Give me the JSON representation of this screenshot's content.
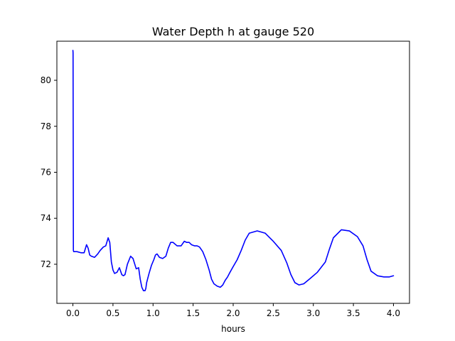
{
  "chart_data": {
    "type": "line",
    "title": "Water Depth h at gauge 520",
    "xlabel": "hours",
    "ylabel": "",
    "xlim": [
      -0.2,
      4.2
    ],
    "ylim": [
      70.3,
      81.7
    ],
    "xticks": [
      0.0,
      0.5,
      1.0,
      1.5,
      2.0,
      2.5,
      3.0,
      3.5,
      4.0
    ],
    "xtick_labels": [
      "0.0",
      "0.5",
      "1.0",
      "1.5",
      "2.0",
      "2.5",
      "3.0",
      "3.5",
      "4.0"
    ],
    "yticks": [
      72,
      74,
      76,
      78,
      80
    ],
    "ytick_labels": [
      "72",
      "74",
      "76",
      "78",
      "80"
    ],
    "grid": false,
    "line_color": "#0000ff",
    "series": [
      {
        "x": [
          0.0,
          0.002,
          0.004,
          0.006,
          0.01,
          0.05,
          0.1,
          0.14,
          0.17,
          0.19,
          0.21,
          0.23,
          0.27,
          0.31,
          0.34,
          0.38,
          0.41,
          0.44,
          0.46,
          0.48,
          0.5,
          0.52,
          0.55,
          0.58,
          0.61,
          0.63,
          0.65,
          0.68,
          0.72,
          0.75,
          0.79,
          0.82,
          0.84,
          0.86,
          0.88,
          0.9,
          0.91,
          0.92,
          0.95,
          0.98,
          1.01,
          1.03,
          1.05,
          1.08,
          1.12,
          1.16,
          1.19,
          1.22,
          1.25,
          1.3,
          1.35,
          1.39,
          1.42,
          1.45,
          1.48,
          1.52,
          1.55,
          1.58,
          1.62,
          1.66,
          1.7,
          1.73,
          1.76,
          1.8,
          1.84,
          1.87,
          1.9,
          1.93,
          1.96,
          2.0,
          2.05,
          2.1,
          2.15,
          2.2,
          2.3,
          2.4,
          2.5,
          2.6,
          2.67,
          2.72,
          2.77,
          2.82,
          2.88,
          2.95,
          3.05,
          3.15,
          3.2,
          3.25,
          3.35,
          3.45,
          3.55,
          3.62,
          3.67,
          3.72,
          3.8,
          3.88,
          3.95,
          4.0
        ],
        "y": [
          81.3,
          81.2,
          77.0,
          72.6,
          72.55,
          72.55,
          72.5,
          72.5,
          72.85,
          72.7,
          72.4,
          72.35,
          72.3,
          72.45,
          72.6,
          72.75,
          72.8,
          73.15,
          72.95,
          72.1,
          71.75,
          71.6,
          71.65,
          71.85,
          71.55,
          71.5,
          71.55,
          72.0,
          72.35,
          72.25,
          71.8,
          71.85,
          71.35,
          71.0,
          70.85,
          70.85,
          70.95,
          71.2,
          71.6,
          71.95,
          72.2,
          72.4,
          72.45,
          72.3,
          72.25,
          72.35,
          72.7,
          72.95,
          72.95,
          72.8,
          72.8,
          73.0,
          72.95,
          72.95,
          72.85,
          72.8,
          72.8,
          72.75,
          72.55,
          72.2,
          71.75,
          71.35,
          71.15,
          71.05,
          71.0,
          71.1,
          71.3,
          71.45,
          71.65,
          71.9,
          72.2,
          72.6,
          73.05,
          73.35,
          73.45,
          73.35,
          73.0,
          72.6,
          72.05,
          71.55,
          71.2,
          71.1,
          71.15,
          71.35,
          71.65,
          72.1,
          72.65,
          73.15,
          73.5,
          73.45,
          73.2,
          72.8,
          72.2,
          71.7,
          71.5,
          71.45,
          71.45,
          71.5
        ]
      }
    ]
  }
}
